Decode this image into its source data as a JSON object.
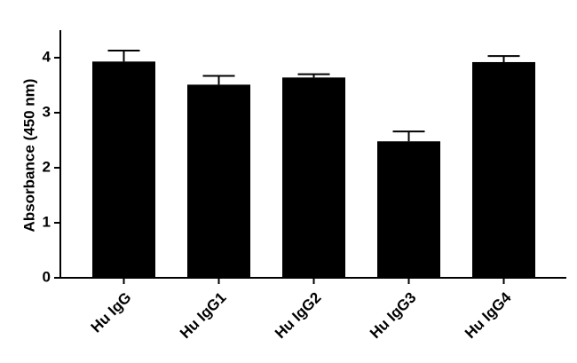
{
  "chart_data": {
    "type": "bar",
    "y_label": "Absorbance (450 nm)",
    "categories": [
      "Hu IgG",
      "Hu IgG1",
      "Hu IgG2",
      "Hu IgG3",
      "Hu IgG4"
    ],
    "values": [
      3.93,
      3.51,
      3.64,
      2.48,
      3.92
    ],
    "errors": [
      0.2,
      0.16,
      0.06,
      0.18,
      0.11
    ],
    "color": "#000000",
    "ylim": [
      0,
      4.5
    ],
    "yticks": [
      0,
      1,
      2,
      3,
      4
    ],
    "grid": false
  }
}
